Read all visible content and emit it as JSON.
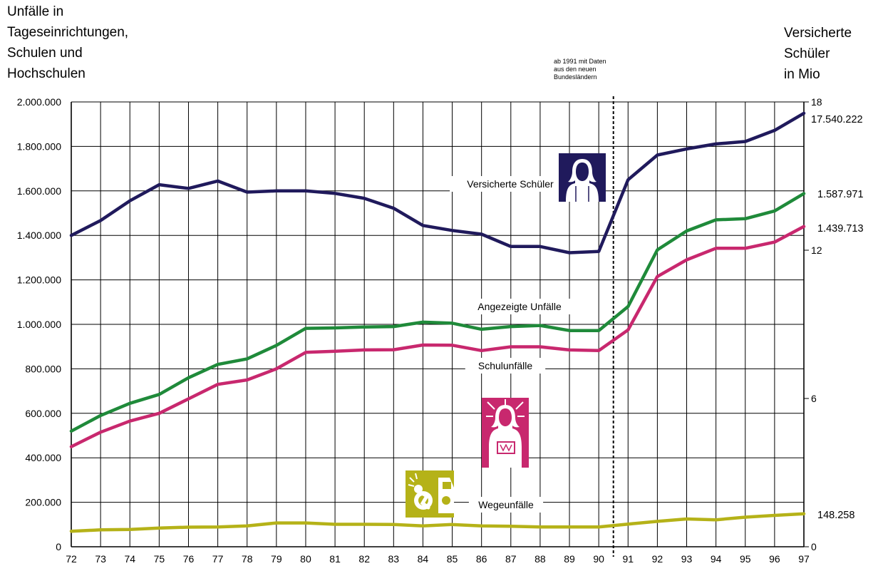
{
  "left_title_lines": [
    "Unfälle in",
    "Tageseinrichtungen,",
    "Schulen und",
    "Hochschulen"
  ],
  "right_title_lines": [
    "Versicherte",
    "Schüler",
    "in Mio"
  ],
  "note_lines": [
    "ab 1991 mit Daten",
    "aus den neuen",
    "Bundesländern"
  ],
  "colors": {
    "versicherte": "#201a5c",
    "angezeigte": "#1f8a3a",
    "schulunfaelle": "#c8286e",
    "wegeunfaelle": "#b5b218"
  },
  "icons": {
    "versicherte": "student-icon",
    "schulunfaelle": "injured-student-icon",
    "wegeunfaelle": "traffic-accident-icon"
  },
  "chart_data": {
    "type": "line",
    "x": [
      "72",
      "73",
      "74",
      "75",
      "76",
      "77",
      "78",
      "79",
      "80",
      "81",
      "82",
      "83",
      "84",
      "85",
      "86",
      "87",
      "88",
      "89",
      "90",
      "91",
      "92",
      "93",
      "94",
      "95",
      "96",
      "97"
    ],
    "ylim": [
      0,
      2000000
    ],
    "y_ticks": [
      "0",
      "200.000",
      "400.000",
      "600.000",
      "800.000",
      "1.000.000",
      "1.200.000",
      "1.400.000",
      "1.600.000",
      "1.800.000",
      "2.000.000"
    ],
    "y2lim": [
      0,
      18
    ],
    "y2_ticks": [
      "0",
      "6",
      "12",
      "18"
    ],
    "grid": true,
    "break_after": "90",
    "series": [
      {
        "name": "Versicherte Schüler",
        "key": "versicherte",
        "axis": "right",
        "values": [
          12.6,
          13.2,
          14.0,
          14.65,
          14.5,
          14.8,
          14.35,
          14.4,
          14.4,
          14.3,
          14.1,
          13.7,
          13.0,
          12.8,
          12.65,
          12.15,
          12.15,
          11.9,
          11.95,
          14.85,
          15.85,
          16.1,
          16.3,
          16.4,
          16.85,
          17.54
        ],
        "end_label": "17.540.222"
      },
      {
        "name": "Angezeigte Unfälle",
        "key": "angezeigte",
        "axis": "left",
        "values": [
          520000,
          590000,
          645000,
          685000,
          760000,
          820000,
          845000,
          905000,
          982000,
          984000,
          988000,
          990000,
          1010000,
          1005000,
          978000,
          990000,
          995000,
          972000,
          972000,
          1080000,
          1335000,
          1420000,
          1470000,
          1475000,
          1510000,
          1587971
        ],
        "end_label": "1.587.971"
      },
      {
        "name": "Schulunfälle",
        "key": "schulunfaelle",
        "axis": "left",
        "values": [
          450000,
          515000,
          565000,
          600000,
          665000,
          730000,
          750000,
          800000,
          874000,
          879000,
          885000,
          886000,
          907000,
          906000,
          882000,
          899000,
          899000,
          885000,
          882000,
          975000,
          1215000,
          1290000,
          1342000,
          1342000,
          1370000,
          1439713
        ],
        "end_label": "1.439.713"
      },
      {
        "name": "Wegeunfälle",
        "key": "wegeunfaelle",
        "axis": "left",
        "values": [
          70000,
          76000,
          78000,
          84000,
          88000,
          89000,
          94000,
          107000,
          107000,
          101000,
          101000,
          100000,
          94000,
          100000,
          94000,
          92000,
          89000,
          89000,
          89000,
          102000,
          114000,
          125000,
          121000,
          133000,
          141000,
          148258
        ],
        "end_label": "148.258"
      }
    ]
  }
}
